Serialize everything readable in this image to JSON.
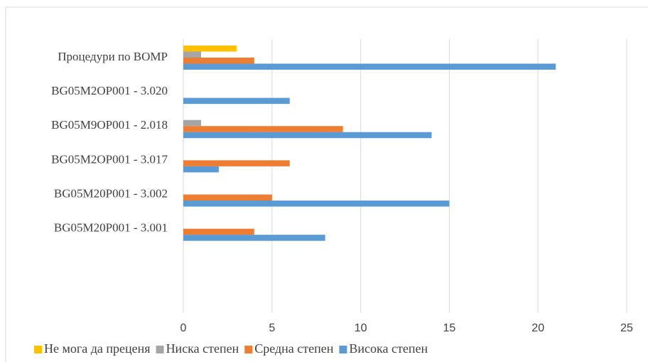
{
  "chart_data": {
    "type": "bar",
    "orientation": "horizontal",
    "categories": [
      "Процедури по ВОМР",
      "BG05M2OP001 - 3.020",
      "BG05M9OP001 - 2.018",
      "BG05M2OP001 - 3.017",
      "BG05M20P001 - 3.002",
      "BG05M20P001 - 3.001",
      null,
      null
    ],
    "series": [
      {
        "name": "Не мога да преценя",
        "color": "#ffc000",
        "values": [
          3,
          0,
          0,
          0,
          0,
          0,
          null,
          null
        ]
      },
      {
        "name": "Ниска степен",
        "color": "#a5a5a5",
        "values": [
          1,
          0,
          1,
          0,
          0,
          0,
          null,
          null
        ]
      },
      {
        "name": "Средна степен",
        "color": "#ed7d31",
        "values": [
          4,
          0,
          9,
          6,
          5,
          4,
          null,
          null
        ]
      },
      {
        "name": "Висока степен",
        "color": "#5b9bd5",
        "values": [
          21,
          6,
          14,
          2,
          15,
          8,
          null,
          null
        ]
      }
    ],
    "xlim": [
      0,
      25
    ],
    "xticks": [
      0,
      5,
      10,
      15,
      20,
      25
    ],
    "grid": true,
    "legend": "bottom"
  }
}
